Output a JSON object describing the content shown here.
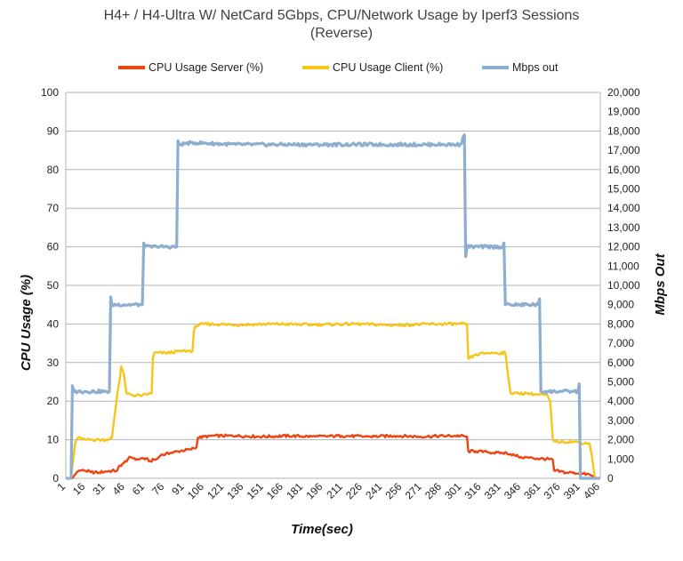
{
  "chart_data": {
    "type": "line",
    "title_lines": [
      "H4+ / H4-Ultra W/ NetCard 5Gbps, CPU/Network Usage by Iperf3 Sessions",
      "(Reverse)"
    ],
    "xlabel": "Time(sec)",
    "ylabel_left": "CPU Usage (%)",
    "ylabel_right": "Mbps Out",
    "xlim": [
      1,
      406
    ],
    "ylim_left": [
      0,
      100
    ],
    "ylim_right": [
      0,
      20000
    ],
    "x_ticks": [
      1,
      16,
      31,
      46,
      61,
      76,
      91,
      106,
      121,
      136,
      151,
      166,
      181,
      196,
      211,
      226,
      241,
      256,
      271,
      286,
      301,
      316,
      331,
      346,
      361,
      376,
      391,
      406
    ],
    "y_left_ticks": [
      0,
      10,
      20,
      30,
      40,
      50,
      60,
      70,
      80,
      90,
      100
    ],
    "y_right_ticks": [
      "0",
      "1,000",
      "2,000",
      "3,000",
      "4,000",
      "5,000",
      "6,000",
      "7,000",
      "8,000",
      "9,000",
      "10,000",
      "11,000",
      "12,000",
      "13,000",
      "14,000",
      "15,000",
      "16,000",
      "17,000",
      "18,000",
      "19,000",
      "20,000"
    ],
    "grid": true,
    "legend_position": "top",
    "series": [
      {
        "name": "CPU Usage Server (%)",
        "color": "#ee4411",
        "axis": "left",
        "points": [
          [
            1,
            0
          ],
          [
            6,
            0
          ],
          [
            8,
            1
          ],
          [
            10,
            1.8
          ],
          [
            14,
            2.2
          ],
          [
            20,
            1.6
          ],
          [
            26,
            1.5
          ],
          [
            31,
            1.8
          ],
          [
            40,
            2
          ],
          [
            41,
            3
          ],
          [
            45,
            4
          ],
          [
            50,
            5.5
          ],
          [
            55,
            5
          ],
          [
            60,
            5.2
          ],
          [
            65,
            4.5
          ],
          [
            70,
            5
          ],
          [
            73,
            6
          ],
          [
            80,
            6.5
          ],
          [
            86,
            7
          ],
          [
            95,
            7.5
          ],
          [
            100,
            8
          ],
          [
            101,
            10.5
          ],
          [
            110,
            11
          ],
          [
            130,
            11
          ],
          [
            150,
            10.8
          ],
          [
            170,
            11
          ],
          [
            190,
            10.8
          ],
          [
            210,
            11
          ],
          [
            230,
            10.8
          ],
          [
            250,
            11
          ],
          [
            270,
            10.8
          ],
          [
            290,
            11
          ],
          [
            300,
            11
          ],
          [
            305,
            10.8
          ],
          [
            306,
            7
          ],
          [
            312,
            7
          ],
          [
            320,
            6.8
          ],
          [
            330,
            6.5
          ],
          [
            335,
            6.6
          ],
          [
            341,
            6
          ],
          [
            346,
            5.5
          ],
          [
            355,
            5.2
          ],
          [
            365,
            5
          ],
          [
            370,
            4.8
          ],
          [
            371,
            2
          ],
          [
            380,
            1.5
          ],
          [
            386,
            1.5
          ],
          [
            390,
            1.2
          ],
          [
            398,
            1
          ],
          [
            402,
            0
          ],
          [
            406,
            0
          ]
        ]
      },
      {
        "name": "CPU Usage Client (%)",
        "color": "#f5c518",
        "axis": "left",
        "points": [
          [
            1,
            0
          ],
          [
            5,
            0
          ],
          [
            8,
            9
          ],
          [
            10,
            10.5
          ],
          [
            16,
            10
          ],
          [
            24,
            10
          ],
          [
            31,
            10
          ],
          [
            36,
            10.5
          ],
          [
            39,
            19
          ],
          [
            40,
            22
          ],
          [
            42,
            26
          ],
          [
            43,
            29
          ],
          [
            45,
            27
          ],
          [
            47,
            22
          ],
          [
            52,
            21.5
          ],
          [
            59,
            21.5
          ],
          [
            66,
            22
          ],
          [
            67,
            31
          ],
          [
            68,
            32.5
          ],
          [
            78,
            32.5
          ],
          [
            88,
            33
          ],
          [
            97,
            33
          ],
          [
            98,
            38
          ],
          [
            99,
            39.5
          ],
          [
            105,
            40
          ],
          [
            130,
            39.8
          ],
          [
            160,
            40
          ],
          [
            190,
            39.8
          ],
          [
            220,
            40
          ],
          [
            250,
            39.7
          ],
          [
            280,
            40
          ],
          [
            300,
            40
          ],
          [
            305,
            40
          ],
          [
            306,
            31
          ],
          [
            311,
            32
          ],
          [
            320,
            32.5
          ],
          [
            334,
            32.5
          ],
          [
            338,
            22
          ],
          [
            350,
            22
          ],
          [
            366,
            21.5
          ],
          [
            368,
            20
          ],
          [
            370,
            10
          ],
          [
            372,
            9.5
          ],
          [
            385,
            9.5
          ],
          [
            398,
            9
          ],
          [
            400,
            5
          ],
          [
            402,
            0
          ],
          [
            406,
            0
          ]
        ]
      },
      {
        "name": "Mbps out",
        "color": "#8eaed0",
        "axis": "right",
        "points": [
          [
            1,
            0
          ],
          [
            5,
            0
          ],
          [
            6,
            4800
          ],
          [
            7,
            4500
          ],
          [
            15,
            4500
          ],
          [
            31,
            4500
          ],
          [
            34,
            4500
          ],
          [
            35,
            9400
          ],
          [
            36,
            9000
          ],
          [
            45,
            9000
          ],
          [
            59,
            9000
          ],
          [
            60,
            12200
          ],
          [
            61,
            12000
          ],
          [
            70,
            12000
          ],
          [
            85,
            12000
          ],
          [
            86,
            17500
          ],
          [
            87,
            17300
          ],
          [
            96,
            17400
          ],
          [
            130,
            17300
          ],
          [
            160,
            17300
          ],
          [
            190,
            17300
          ],
          [
            220,
            17300
          ],
          [
            250,
            17300
          ],
          [
            280,
            17300
          ],
          [
            300,
            17300
          ],
          [
            303,
            17800
          ],
          [
            304,
            11500
          ],
          [
            305,
            12000
          ],
          [
            320,
            12000
          ],
          [
            332,
            12000
          ],
          [
            333,
            12200
          ],
          [
            334,
            9000
          ],
          [
            345,
            9000
          ],
          [
            359,
            9000
          ],
          [
            360,
            9300
          ],
          [
            361,
            4500
          ],
          [
            375,
            4500
          ],
          [
            389,
            4500
          ],
          [
            390,
            4900
          ],
          [
            391,
            0
          ],
          [
            406,
            0
          ]
        ]
      }
    ]
  }
}
